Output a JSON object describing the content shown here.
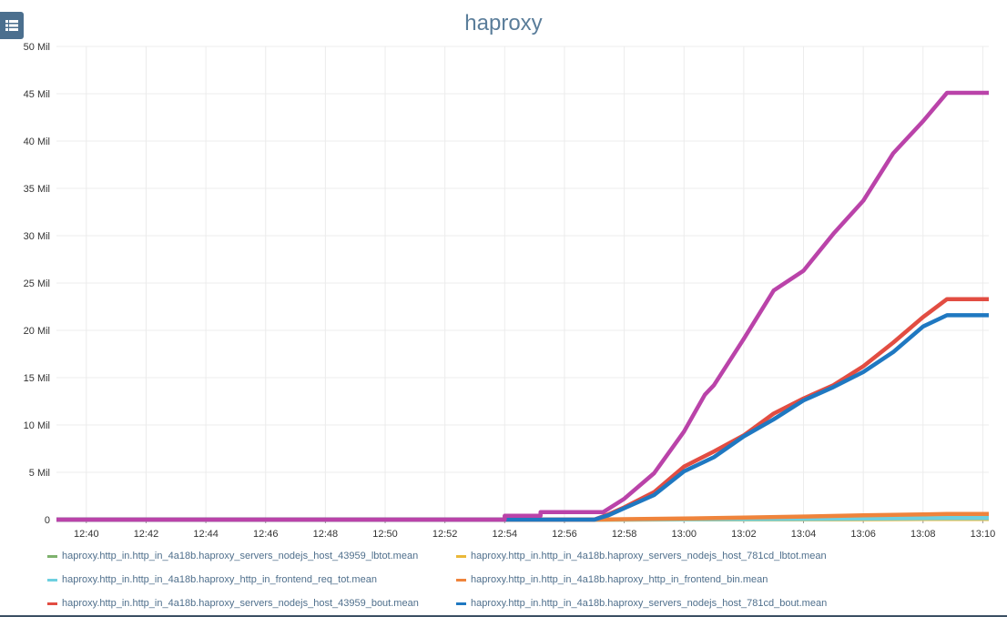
{
  "toolbar": {
    "menu_icon": "list-icon"
  },
  "chart_data": {
    "type": "line",
    "title": "haproxy",
    "xlabel": "",
    "ylabel": "",
    "x_ticks": [
      "12:40",
      "12:42",
      "12:44",
      "12:46",
      "12:48",
      "12:50",
      "12:52",
      "12:54",
      "12:56",
      "12:58",
      "13:00",
      "13:02",
      "13:04",
      "13:06",
      "13:08",
      "13:10"
    ],
    "xlim": [
      "12:39",
      "13:10.2"
    ],
    "y_ticks": [
      0,
      5,
      10,
      15,
      20,
      25,
      30,
      35,
      40,
      45,
      50
    ],
    "y_tick_labels": [
      "0",
      "5 Mil",
      "10 Mil",
      "15 Mil",
      "20 Mil",
      "25 Mil",
      "30 Mil",
      "35 Mil",
      "40 Mil",
      "45 Mil",
      "50 Mil"
    ],
    "ylim": [
      0,
      50
    ],
    "y_unit": "Mil",
    "grid": true,
    "legend_position": "bottom",
    "series": [
      {
        "name": "haproxy.http_in.http_in_4a18b.haproxy_servers_nodejs_host_43959_lbtot.mean",
        "color": "#7eb26d",
        "x": [
          "12:39",
          "12:57",
          "13:00",
          "13:05",
          "13:08.8",
          "13:10.2"
        ],
        "y": [
          0,
          0,
          0.02,
          0.05,
          0.08,
          0.08
        ]
      },
      {
        "name": "haproxy.http_in.http_in_4a18b.haproxy_servers_nodejs_host_781cd_lbtot.mean",
        "color": "#eab839",
        "x": [
          "12:39",
          "12:57",
          "13:00",
          "13:05",
          "13:08.8",
          "13:10.2"
        ],
        "y": [
          0,
          0,
          0.02,
          0.05,
          0.08,
          0.08
        ]
      },
      {
        "name": "haproxy.http_in.http_in_4a18b.haproxy_http_in_frontend_req_tot.mean",
        "color": "#6ed0e0",
        "x": [
          "12:39",
          "12:57",
          "13:00",
          "13:05",
          "13:08.8",
          "13:10.2"
        ],
        "y": [
          0,
          0,
          0.05,
          0.1,
          0.16,
          0.16
        ]
      },
      {
        "name": "haproxy.http_in.http_in_4a18b.haproxy_http_in_frontend_bin.mean",
        "color": "#ef843c",
        "x": [
          "12:39",
          "12:57",
          "12:58",
          "13:00",
          "13:02",
          "13:04",
          "13:06",
          "13:08",
          "13:08.8",
          "13:10.2"
        ],
        "y": [
          0,
          0,
          0.05,
          0.12,
          0.22,
          0.33,
          0.45,
          0.55,
          0.6,
          0.6
        ]
      },
      {
        "name": "haproxy.http_in.http_in_4a18b.haproxy_servers_nodejs_host_43959_bout.mean",
        "color": "#e24d42",
        "x": [
          "12:39",
          "12:57",
          "12:57.5",
          "12:58",
          "12:59",
          "13:00",
          "13:01",
          "13:02",
          "13:03",
          "13:04",
          "13:05",
          "13:06",
          "13:07",
          "13:08",
          "13:08.8",
          "13:10.2"
        ],
        "y": [
          0,
          0,
          0.6,
          1.3,
          2.9,
          5.6,
          7.2,
          8.9,
          11.2,
          12.8,
          14.2,
          16.2,
          18.7,
          21.4,
          23.3,
          23.3
        ]
      },
      {
        "name": "haproxy.http_in.http_in_4a18b.haproxy_servers_nodejs_host_781cd_bout.mean",
        "color": "#1f78c1",
        "x": [
          "12:39",
          "12:57",
          "12:57.5",
          "12:58",
          "12:59",
          "13:00",
          "13:01",
          "13:02",
          "13:03",
          "13:04",
          "13:05",
          "13:06",
          "13:07",
          "13:08",
          "13:08.8",
          "13:10.2"
        ],
        "y": [
          0,
          0,
          0.5,
          1.2,
          2.6,
          5.1,
          6.6,
          8.8,
          10.6,
          12.6,
          14.0,
          15.6,
          17.7,
          20.4,
          21.6,
          21.6
        ]
      },
      {
        "name": "",
        "color": "#ba43a9",
        "x": [
          "12:39",
          "12:54",
          "12:54",
          "12:55.2",
          "12:55.2",
          "12:57.3",
          "12:58",
          "12:59",
          "13:00",
          "13:00.7",
          "13:01",
          "13:02",
          "13:03",
          "13:04",
          "13:05",
          "13:06",
          "13:07",
          "13:08",
          "13:08.8",
          "13:10.2"
        ],
        "y": [
          0,
          0,
          0.4,
          0.4,
          0.8,
          0.8,
          2.2,
          4.9,
          9.3,
          13.2,
          14.2,
          19.1,
          24.2,
          26.3,
          30.2,
          33.7,
          38.7,
          42.1,
          45.1,
          45.1
        ]
      }
    ]
  }
}
